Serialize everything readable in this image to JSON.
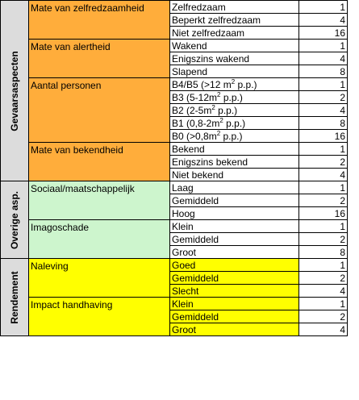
{
  "colors": {
    "gevaar": "#ffad3b",
    "overige": "#cdf5cd",
    "rendement": "#ffff00",
    "section": "#dcdcdc",
    "border": "#000000"
  },
  "sections": [
    {
      "label": "Gevaarsaspecten",
      "fill": "#ffad3b",
      "groups": [
        {
          "name": "Mate van zelfredzaamheid",
          "rows": [
            {
              "option": "Zelfredzaam",
              "value": "1"
            },
            {
              "option": "Beperkt zelfredzaam",
              "value": "4"
            },
            {
              "option": "Niet zelfredzaam",
              "value": "16"
            }
          ]
        },
        {
          "name": "Mate van alertheid",
          "rows": [
            {
              "option": "Wakend",
              "value": "1"
            },
            {
              "option": "Enigszins wakend",
              "value": "4"
            },
            {
              "option": "Slapend",
              "value": "8"
            }
          ]
        },
        {
          "name": "Aantal personen",
          "rows": [
            {
              "option": "B4/B5 (>12 m² p.p.)",
              "value": "1"
            },
            {
              "option": "B3 (5-12m² p.p.)",
              "value": "2"
            },
            {
              "option": "B2 (2-5m² p.p.)",
              "value": "4"
            },
            {
              "option": "B1 (0,8-2m² p.p.)",
              "value": "8"
            },
            {
              "option": "B0 (>0,8m² p.p.)",
              "value": "16"
            }
          ]
        },
        {
          "name": "Mate van bekendheid",
          "rows": [
            {
              "option": "Bekend",
              "value": "1"
            },
            {
              "option": "Enigszins bekend",
              "value": "2"
            },
            {
              "option": "Niet bekend",
              "value": "4"
            }
          ]
        }
      ]
    },
    {
      "label": "Overige asp.",
      "fill": "#cdf5cd",
      "groups": [
        {
          "name": "Sociaal/maatschappelijk",
          "rows": [
            {
              "option": "Laag",
              "value": "1"
            },
            {
              "option": "Gemiddeld",
              "value": "2"
            },
            {
              "option": "Hoog",
              "value": "16"
            }
          ]
        },
        {
          "name": "Imagoschade",
          "rows": [
            {
              "option": "Klein",
              "value": "1"
            },
            {
              "option": "Gemiddeld",
              "value": "2"
            },
            {
              "option": "Groot",
              "value": "8"
            }
          ]
        }
      ]
    },
    {
      "label": "Rendement",
      "fill": "#ffff00",
      "groups": [
        {
          "name": "Naleving",
          "rows": [
            {
              "option": "Goed",
              "value": "1"
            },
            {
              "option": "Gemiddeld",
              "value": "2"
            },
            {
              "option": "Slecht",
              "value": "4"
            }
          ]
        },
        {
          "name": "Impact handhaving",
          "rows": [
            {
              "option": "Klein",
              "value": "1"
            },
            {
              "option": "Gemiddeld",
              "value": "2"
            },
            {
              "option": "Groot",
              "value": "4"
            }
          ]
        }
      ]
    }
  ]
}
